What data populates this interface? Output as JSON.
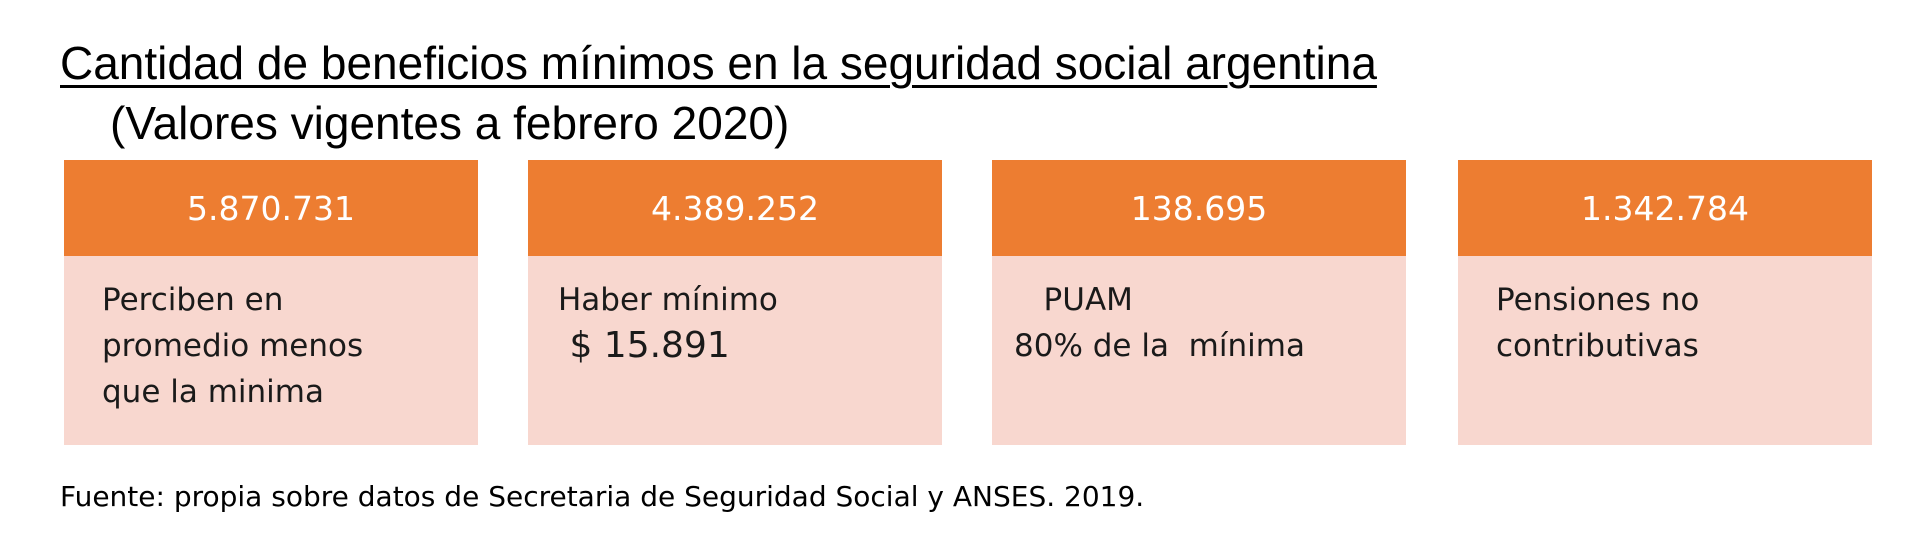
{
  "title": "Cantidad de beneficios mínimos en la seguridad social argentina",
  "subtitle": "(Valores vigentes a febrero 2020)",
  "cards": [
    {
      "count": "5.870.731",
      "lines": [
        "Perciben en",
        "promedio menos",
        "que la minima"
      ]
    },
    {
      "count": "4.389.252",
      "lines": [
        "Haber mínimo",
        " $ 15.891"
      ]
    },
    {
      "count": "138.695",
      "lines": [
        "   PUAM",
        "80% de la  mínima"
      ]
    },
    {
      "count": "1.342.784",
      "lines": [
        "Pensiones no",
        "contributivas"
      ]
    }
  ],
  "source": "Fuente: propia sobre datos de Secretaria de Seguridad Social y ANSES. 2019.",
  "colors": {
    "header": "#ed7d31",
    "body": "#f8d7cf",
    "header_text": "#ffffff"
  }
}
